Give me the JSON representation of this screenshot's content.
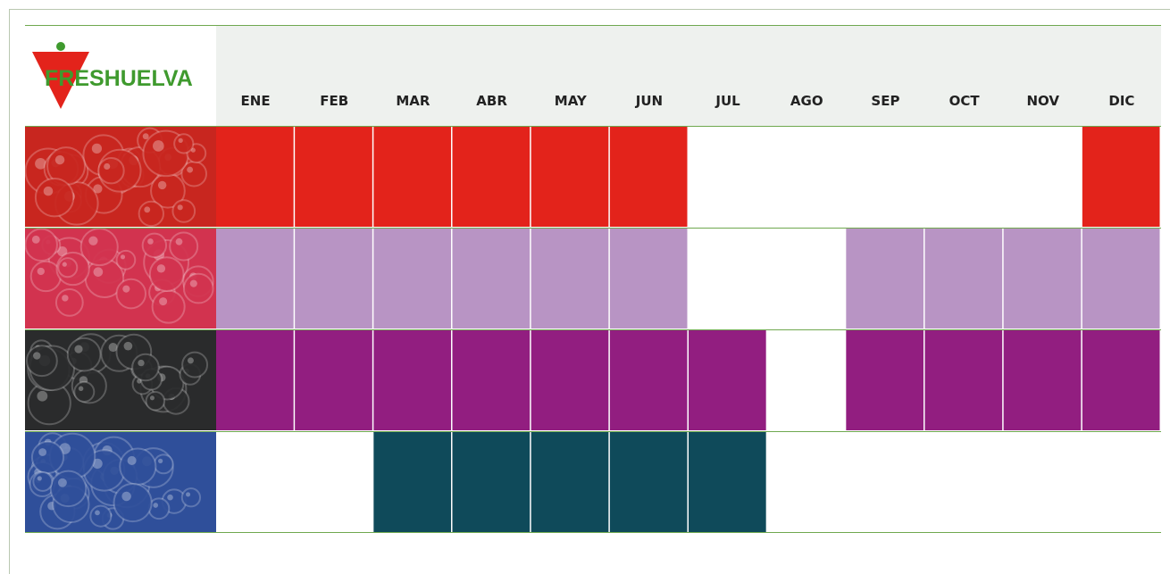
{
  "logo": {
    "text": "FRESHUELVA"
  },
  "header": {
    "months": [
      "ENE",
      "FEB",
      "MAR",
      "ABR",
      "MAY",
      "JUN",
      "JUL",
      "AGO",
      "SEP",
      "OCT",
      "NOV",
      "DIC"
    ]
  },
  "rows": [
    {
      "color": "#e3231b",
      "photo": "#c8261f",
      "available": [
        true,
        true,
        true,
        true,
        true,
        true,
        false,
        false,
        false,
        false,
        false,
        true
      ]
    },
    {
      "color": "#b894c4",
      "photo": "#d2334f",
      "available": [
        true,
        true,
        true,
        true,
        true,
        true,
        false,
        false,
        true,
        true,
        true,
        true
      ]
    },
    {
      "color": "#921e80",
      "photo": "#2a2b2c",
      "available": [
        true,
        true,
        true,
        true,
        true,
        true,
        true,
        false,
        true,
        true,
        true,
        true
      ]
    },
    {
      "color": "#0f4a5a",
      "photo": "#2f4f9a",
      "available": [
        false,
        false,
        true,
        true,
        true,
        true,
        true,
        false,
        false,
        false,
        false,
        false
      ]
    }
  ]
}
